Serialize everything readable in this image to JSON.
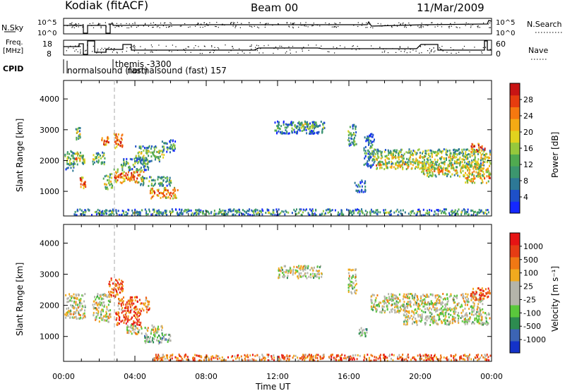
{
  "header": {
    "station": "Kodiak (fitACF)",
    "beam": "Beam 00",
    "date": "11/Mar/2009"
  },
  "status_panels": {
    "nsky_label": "N.Sky",
    "nsearch_label": "N.Search",
    "nsky_ticks": [
      "10^5",
      "10^0"
    ],
    "nsearch_ticks": [
      "10^5",
      "10^0"
    ],
    "freq_label": [
      "Freq.",
      "[MHz]"
    ],
    "freq_ticks": [
      "18",
      "8"
    ],
    "nave_label": "Nave",
    "nave_ticks": [
      "60",
      "0"
    ],
    "cpid_label": "CPID",
    "cpid_texts": [
      "normalsound (fast)",
      "themis -3300",
      "normalsound (fast) 157"
    ]
  },
  "chart_data": [
    {
      "type": "heatmap",
      "name": "Power",
      "xlabel": "",
      "ylabel": "Slant Range [km]",
      "xlim": [
        0,
        24
      ],
      "ylim": [
        200,
        4600
      ],
      "y_ticks": [
        1000,
        2000,
        3000,
        4000
      ],
      "colorbar": {
        "label": "Power [dB]",
        "ticks": [
          "28",
          "24",
          "20",
          "16",
          "12",
          "8",
          "4"
        ],
        "colors": [
          "#1428ff",
          "#1e50c8",
          "#2d7896",
          "#3c966e",
          "#50aa50",
          "#96c83c",
          "#e1d21e",
          "#f5aa14",
          "#f5780f",
          "#e63c0f",
          "#c81414"
        ]
      },
      "regions": [
        {
          "t0": 0.05,
          "t1": 0.6,
          "r0": 1700,
          "r1": 2400,
          "level": 0.45
        },
        {
          "t0": 0.6,
          "t1": 1.0,
          "r0": 1900,
          "r1": 2300,
          "level": 0.7
        },
        {
          "t0": 0.6,
          "t1": 0.9,
          "r0": 2700,
          "r1": 3100,
          "level": 0.5
        },
        {
          "t0": 0.9,
          "t1": 1.2,
          "r0": 1100,
          "r1": 1500,
          "level": 0.9
        },
        {
          "t0": 1.0,
          "t1": 1.15,
          "r0": 1900,
          "r1": 2200,
          "level": 0.6
        },
        {
          "t0": 1.6,
          "t1": 2.3,
          "r0": 1900,
          "r1": 2300,
          "level": 0.5
        },
        {
          "t0": 2.1,
          "t1": 2.5,
          "r0": 2500,
          "r1": 2800,
          "level": 0.95
        },
        {
          "t0": 2.2,
          "t1": 2.7,
          "r0": 1100,
          "r1": 1600,
          "level": 0.55
        },
        {
          "t0": 2.8,
          "t1": 3.3,
          "r0": 2400,
          "r1": 2900,
          "level": 0.9
        },
        {
          "t0": 2.8,
          "t1": 4.5,
          "r0": 1300,
          "r1": 1750,
          "level": 0.85
        },
        {
          "t0": 3.2,
          "t1": 4.8,
          "r0": 1700,
          "r1": 2100,
          "level": 0.45
        },
        {
          "t0": 4.0,
          "t1": 5.6,
          "r0": 2000,
          "r1": 2500,
          "level": 0.5
        },
        {
          "t0": 4.2,
          "t1": 6.0,
          "r0": 1200,
          "r1": 1500,
          "level": 0.5
        },
        {
          "t0": 4.8,
          "t1": 6.4,
          "r0": 800,
          "r1": 1150,
          "level": 0.85
        },
        {
          "t0": 5.5,
          "t1": 6.3,
          "r0": 2300,
          "r1": 2700,
          "level": 0.4
        },
        {
          "t0": 11.8,
          "t1": 14.6,
          "r0": 2900,
          "r1": 3300,
          "level": 0.35
        },
        {
          "t0": 12.8,
          "t1": 14.2,
          "r0": 3100,
          "r1": 3300,
          "level": 0.55
        },
        {
          "t0": 15.9,
          "t1": 16.4,
          "r0": 2500,
          "r1": 3200,
          "level": 0.45
        },
        {
          "t0": 16.3,
          "t1": 16.9,
          "r0": 1000,
          "r1": 1400,
          "level": 0.3
        },
        {
          "t0": 16.8,
          "t1": 17.4,
          "r0": 1800,
          "r1": 2900,
          "level": 0.35
        },
        {
          "t0": 17.3,
          "t1": 23.9,
          "r0": 1900,
          "r1": 2400,
          "level": 0.55
        },
        {
          "t0": 17.5,
          "t1": 23.5,
          "r0": 1750,
          "r1": 2000,
          "level": 0.7
        },
        {
          "t0": 20.0,
          "t1": 23.9,
          "r0": 1500,
          "r1": 1900,
          "level": 0.65
        },
        {
          "t0": 22.5,
          "t1": 23.9,
          "r0": 1300,
          "r1": 1600,
          "level": 0.75
        },
        {
          "t0": 22.8,
          "t1": 23.6,
          "r0": 2300,
          "r1": 2600,
          "level": 0.95
        },
        {
          "t0": 0.5,
          "t1": 23.9,
          "r0": 250,
          "r1": 450,
          "level": 0.4
        }
      ]
    },
    {
      "type": "heatmap",
      "name": "Velocity",
      "xlabel": "Time UT",
      "ylabel": "Slant Range [km]",
      "xlim": [
        0,
        24
      ],
      "ylim": [
        200,
        4600
      ],
      "x_ticks": [
        "00:00",
        "04:00",
        "08:00",
        "12:00",
        "16:00",
        "20:00",
        "00:00"
      ],
      "y_ticks": [
        1000,
        2000,
        3000,
        4000
      ],
      "colorbar": {
        "label": "Velocity [m s⁻¹]",
        "ticks": [
          "1000",
          "500",
          "100",
          "25",
          "-25",
          "-100",
          "-500",
          "-1000"
        ],
        "colors": [
          "#1432c8",
          "#3c64b4",
          "#2d8c50",
          "#5ac83c",
          "#b4b4aa",
          "#b4b4aa",
          "#f0aa1e",
          "#f07814",
          "#e63c14",
          "#e61414"
        ]
      },
      "regions": [
        {
          "t0": 0.05,
          "t1": 1.2,
          "r0": 1600,
          "r1": 2400,
          "level": 0.5
        },
        {
          "t0": 1.6,
          "t1": 2.6,
          "r0": 1500,
          "r1": 2400,
          "level": 0.5
        },
        {
          "t0": 2.5,
          "t1": 3.3,
          "r0": 2300,
          "r1": 2900,
          "level": 0.8
        },
        {
          "t0": 2.9,
          "t1": 4.3,
          "r0": 1400,
          "r1": 1800,
          "level": 0.85
        },
        {
          "t0": 3.0,
          "t1": 4.8,
          "r0": 1800,
          "r1": 2300,
          "level": 0.8
        },
        {
          "t0": 3.5,
          "t1": 5.5,
          "r0": 1100,
          "r1": 1400,
          "level": 0.5
        },
        {
          "t0": 4.5,
          "t1": 6.0,
          "r0": 800,
          "r1": 1100,
          "level": 0.35
        },
        {
          "t0": 12.0,
          "t1": 14.5,
          "r0": 2900,
          "r1": 3300,
          "level": 0.5
        },
        {
          "t0": 15.9,
          "t1": 16.4,
          "r0": 2400,
          "r1": 3200,
          "level": 0.5
        },
        {
          "t0": 16.5,
          "t1": 17.0,
          "r0": 1000,
          "r1": 1300,
          "level": 0.35
        },
        {
          "t0": 17.2,
          "t1": 23.5,
          "r0": 1800,
          "r1": 2400,
          "level": 0.5
        },
        {
          "t0": 19.0,
          "t1": 23.9,
          "r0": 1400,
          "r1": 1800,
          "level": 0.5
        },
        {
          "t0": 22.8,
          "t1": 23.9,
          "r0": 2200,
          "r1": 2600,
          "level": 0.85
        },
        {
          "t0": 5.0,
          "t1": 23.9,
          "r0": 250,
          "r1": 450,
          "level": 0.75
        }
      ]
    }
  ]
}
